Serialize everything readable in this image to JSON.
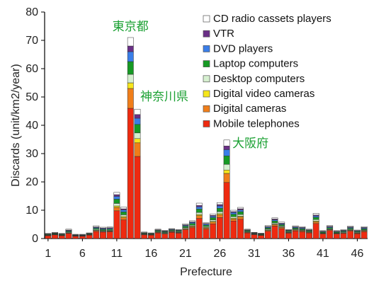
{
  "chart_data": {
    "type": "bar",
    "stacked": true,
    "title": "",
    "xlabel": "Prefecture",
    "ylabel": "Discards (unit/km2/year)",
    "ylim": [
      0,
      80
    ],
    "yticks": [
      0,
      10,
      20,
      30,
      40,
      50,
      60,
      70,
      80
    ],
    "xtick_labels": [
      "1",
      "6",
      "11",
      "16",
      "21",
      "26",
      "31",
      "36",
      "41",
      "46"
    ],
    "grid": false,
    "legend_position": "top-right",
    "categories": [
      1,
      2,
      3,
      4,
      5,
      6,
      7,
      8,
      9,
      10,
      11,
      12,
      13,
      14,
      15,
      16,
      17,
      18,
      19,
      20,
      21,
      22,
      23,
      24,
      25,
      26,
      27,
      28,
      29,
      30,
      31,
      32,
      33,
      34,
      35,
      36,
      37,
      38,
      39,
      40,
      41,
      42,
      43,
      44,
      45,
      46,
      47
    ],
    "series": [
      {
        "name": "Mobile telephones",
        "color": "#ee2a10",
        "values": [
          1.0,
          1.3,
          1.0,
          1.8,
          0.8,
          0.8,
          1.2,
          2.5,
          2.3,
          2.4,
          9.8,
          6.6,
          46.0,
          29.0,
          1.3,
          1.2,
          2.0,
          1.6,
          2.2,
          1.9,
          3.1,
          3.8,
          7.1,
          3.3,
          5.2,
          7.4,
          19.8,
          6.2,
          6.8,
          2.0,
          1.4,
          1.1,
          2.6,
          4.4,
          3.5,
          1.9,
          2.7,
          2.4,
          2.0,
          5.3,
          1.6,
          2.8,
          1.6,
          1.8,
          2.6,
          1.7,
          2.4
        ]
      },
      {
        "name": "Digital cameras",
        "color": "#f07e1a",
        "values": [
          0.1,
          0.1,
          0.1,
          0.2,
          0.1,
          0.1,
          0.1,
          0.3,
          0.2,
          0.2,
          1.2,
          0.8,
          7.0,
          4.8,
          0.2,
          0.1,
          0.2,
          0.2,
          0.2,
          0.2,
          0.3,
          0.4,
          1.0,
          0.4,
          0.6,
          1.0,
          3.2,
          0.7,
          0.8,
          0.2,
          0.1,
          0.1,
          0.3,
          0.5,
          0.4,
          0.2,
          0.3,
          0.3,
          0.2,
          0.6,
          0.2,
          0.3,
          0.2,
          0.2,
          0.3,
          0.2,
          0.3
        ]
      },
      {
        "name": "Digital video cameras",
        "color": "#f6e61a",
        "values": [
          0.05,
          0.1,
          0.05,
          0.1,
          0.05,
          0.05,
          0.05,
          0.1,
          0.1,
          0.1,
          0.5,
          0.4,
          2.0,
          1.5,
          0.1,
          0.05,
          0.1,
          0.1,
          0.1,
          0.1,
          0.15,
          0.2,
          0.4,
          0.2,
          0.3,
          0.4,
          1.2,
          0.3,
          0.3,
          0.1,
          0.05,
          0.05,
          0.15,
          0.2,
          0.2,
          0.1,
          0.1,
          0.1,
          0.1,
          0.3,
          0.1,
          0.1,
          0.1,
          0.1,
          0.1,
          0.1,
          0.1
        ]
      },
      {
        "name": "Desktop computers",
        "color": "#d6f0d0",
        "values": [
          0.1,
          0.1,
          0.1,
          0.2,
          0.1,
          0.1,
          0.1,
          0.3,
          0.2,
          0.2,
          0.9,
          0.6,
          3.0,
          2.0,
          0.1,
          0.1,
          0.2,
          0.2,
          0.2,
          0.2,
          0.3,
          0.3,
          0.7,
          0.3,
          0.5,
          0.7,
          2.0,
          0.5,
          0.6,
          0.2,
          0.1,
          0.1,
          0.3,
          0.4,
          0.3,
          0.2,
          0.2,
          0.2,
          0.2,
          0.5,
          0.1,
          0.2,
          0.1,
          0.2,
          0.2,
          0.2,
          0.2
        ]
      },
      {
        "name": "Laptop computers",
        "color": "#169a24",
        "values": [
          0.2,
          0.2,
          0.2,
          0.3,
          0.1,
          0.1,
          0.2,
          0.4,
          0.4,
          0.4,
          1.5,
          1.0,
          4.5,
          3.0,
          0.2,
          0.2,
          0.3,
          0.3,
          0.3,
          0.3,
          0.5,
          0.6,
          1.2,
          0.5,
          0.8,
          1.2,
          3.0,
          0.9,
          1.0,
          0.3,
          0.2,
          0.2,
          0.4,
          0.7,
          0.5,
          0.3,
          0.4,
          0.4,
          0.3,
          0.8,
          0.3,
          0.4,
          0.3,
          0.3,
          0.4,
          0.3,
          0.4
        ]
      },
      {
        "name": "DVD players",
        "color": "#3a7ee8",
        "values": [
          0.1,
          0.1,
          0.1,
          0.2,
          0.1,
          0.1,
          0.1,
          0.3,
          0.3,
          0.3,
          1.0,
          0.7,
          3.5,
          2.2,
          0.1,
          0.1,
          0.2,
          0.2,
          0.2,
          0.2,
          0.3,
          0.4,
          0.8,
          0.4,
          0.5,
          0.8,
          2.2,
          0.6,
          0.6,
          0.2,
          0.1,
          0.1,
          0.3,
          0.4,
          0.3,
          0.2,
          0.3,
          0.3,
          0.2,
          0.5,
          0.2,
          0.3,
          0.2,
          0.2,
          0.3,
          0.2,
          0.3
        ]
      },
      {
        "name": "VTR",
        "color": "#6a2f86",
        "values": [
          0.1,
          0.1,
          0.1,
          0.2,
          0.1,
          0.1,
          0.1,
          0.2,
          0.2,
          0.2,
          0.6,
          0.4,
          2.0,
          1.3,
          0.1,
          0.1,
          0.1,
          0.1,
          0.1,
          0.1,
          0.2,
          0.2,
          0.5,
          0.2,
          0.3,
          0.5,
          1.3,
          0.3,
          0.4,
          0.1,
          0.1,
          0.1,
          0.2,
          0.3,
          0.2,
          0.1,
          0.2,
          0.2,
          0.1,
          0.3,
          0.1,
          0.2,
          0.1,
          0.1,
          0.2,
          0.1,
          0.2
        ]
      },
      {
        "name": "CD radio cassets players",
        "color": "#ffffff",
        "values": [
          0.15,
          0.2,
          0.15,
          0.3,
          0.15,
          0.15,
          0.15,
          0.4,
          0.3,
          0.3,
          0.8,
          0.6,
          3.0,
          1.9,
          0.2,
          0.15,
          0.2,
          0.2,
          0.2,
          0.2,
          0.35,
          0.4,
          0.8,
          0.3,
          0.5,
          0.7,
          2.1,
          0.5,
          0.5,
          0.2,
          0.15,
          0.15,
          0.35,
          0.4,
          0.4,
          0.2,
          0.3,
          0.3,
          0.2,
          0.6,
          0.2,
          0.3,
          0.2,
          0.2,
          0.3,
          0.2,
          0.3
        ]
      }
    ],
    "annotations": [
      {
        "text": "東京都",
        "category": 13,
        "color": "#1aa032"
      },
      {
        "text": "神奈川県",
        "category": 14,
        "color": "#1aa032"
      },
      {
        "text": "大阪府",
        "category": 27,
        "color": "#1aa032"
      }
    ]
  }
}
